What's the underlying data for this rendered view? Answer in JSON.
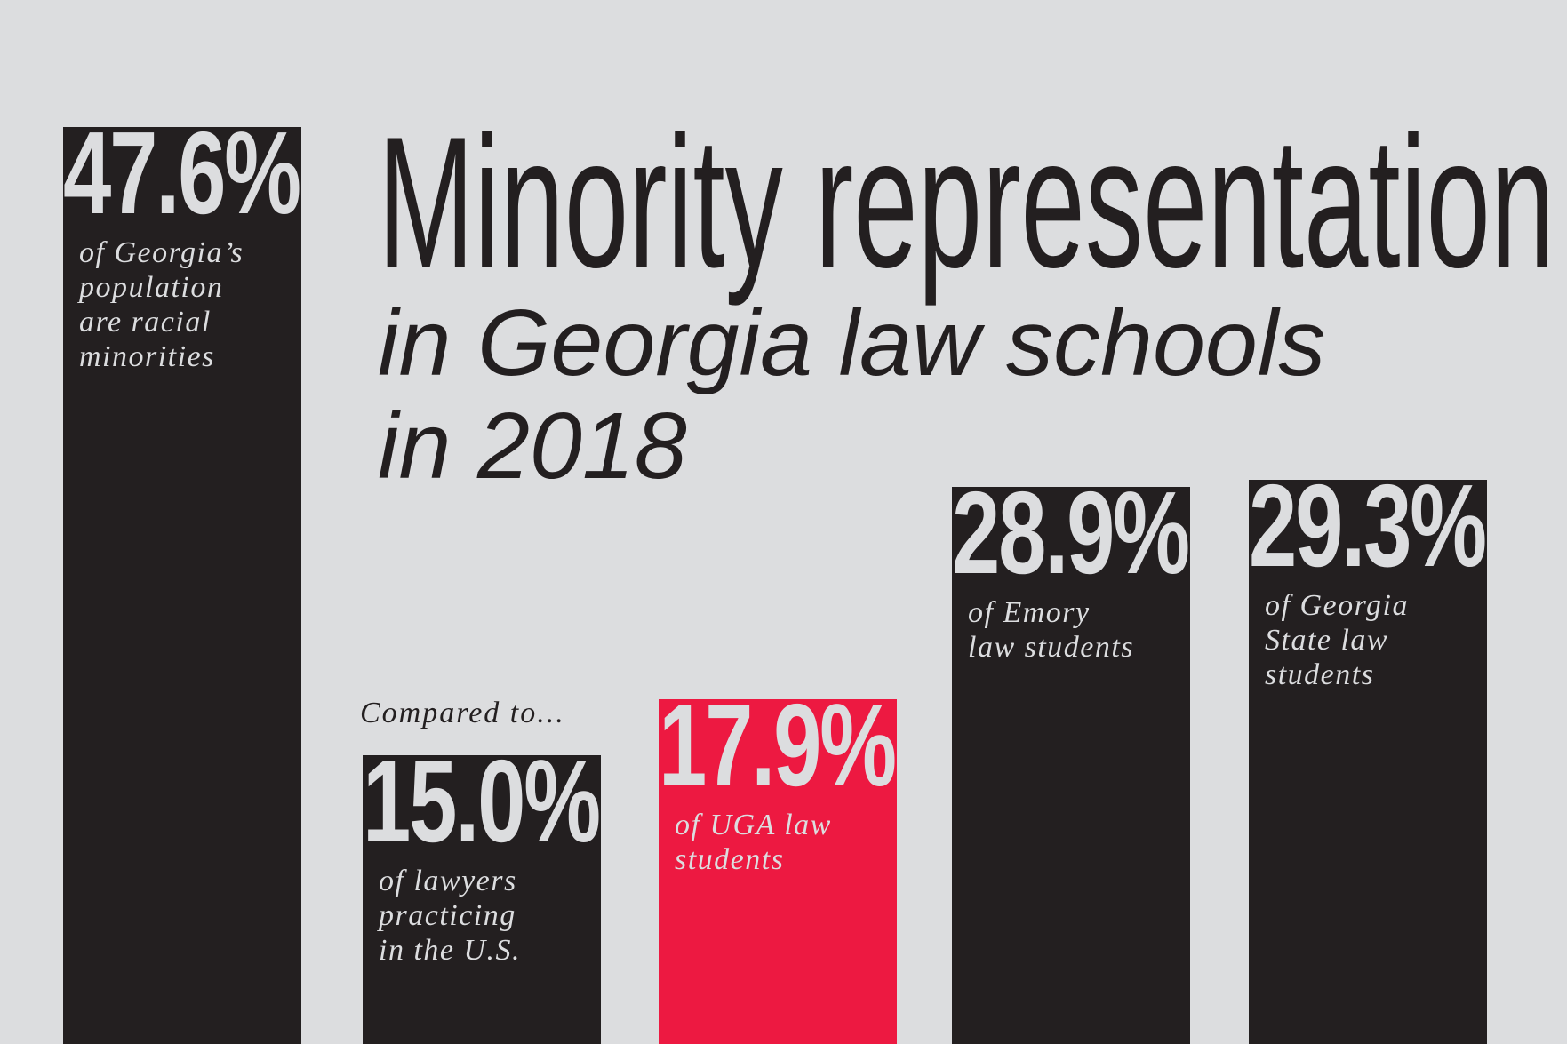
{
  "chart_data": {
    "type": "bar",
    "title": "Minority representation",
    "subtitle_lines": [
      "in Georgia law schools",
      "in 2018"
    ],
    "comparison_label": "Compared to...",
    "categories": [
      "of Georgia’s population are racial minorities",
      "of lawyers practicing in the U.S.",
      "of UGA law students",
      "of Emory law students",
      "of Georgia State law students"
    ],
    "values": [
      47.6,
      15.0,
      17.9,
      28.9,
      29.3
    ],
    "value_labels": [
      "47.6%",
      "15.0%",
      "17.9%",
      "28.9%",
      "29.3%"
    ],
    "description_lines": [
      [
        "of Georgia’s",
        "population",
        "are racial",
        "minorities"
      ],
      [
        "of lawyers",
        "practicing",
        "in the U.S."
      ],
      [
        "of UGA law",
        "students"
      ],
      [
        "of Emory",
        "law students"
      ],
      [
        "of Georgia",
        "State law",
        "students"
      ]
    ],
    "highlight_index": 2,
    "colors": {
      "background": "#dcdddf",
      "bar": "#231f20",
      "highlight": "#ed1941",
      "text_on_bar": "#dcdddf"
    },
    "ylim": [
      0,
      50
    ],
    "grid": false,
    "legend": "none"
  }
}
